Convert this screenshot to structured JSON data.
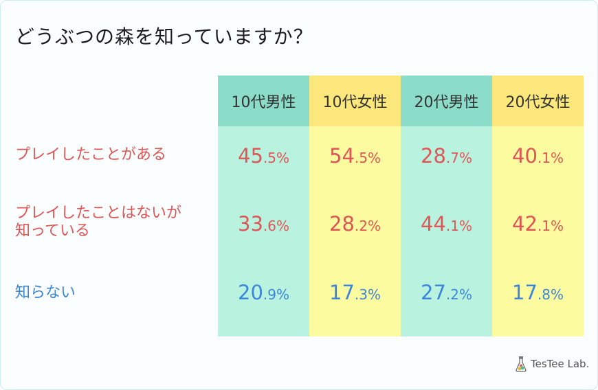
{
  "title": "どうぶつの森を知っていますか？",
  "columns": [
    "10代男性",
    "10代女性",
    "20代男性",
    "20代女性"
  ],
  "rows": [
    {
      "label": "プレイしたことがある",
      "cells": [
        {
          "i": "45",
          "d": ".5%"
        },
        {
          "i": "54",
          "d": ".5%"
        },
        {
          "i": "28",
          "d": ".7%"
        },
        {
          "i": "40",
          "d": ".1%"
        }
      ]
    },
    {
      "label_line1": "プレイしたことはないが",
      "label_line2": "知っている",
      "cells": [
        {
          "i": "33",
          "d": ".6%"
        },
        {
          "i": "28",
          "d": ".2%"
        },
        {
          "i": "44",
          "d": ".1%"
        },
        {
          "i": "42",
          "d": ".1%"
        }
      ]
    },
    {
      "label": "知らない",
      "cells": [
        {
          "i": "20",
          "d": ".9%"
        },
        {
          "i": "17",
          "d": ".3%"
        },
        {
          "i": "27",
          "d": ".2%"
        },
        {
          "i": "17",
          "d": ".8%"
        }
      ]
    }
  ],
  "logo": "TesTee Lab.",
  "colors": {
    "male_header": "#8bdcc9",
    "male_body": "#b9f2df",
    "female_header": "#fbe77c",
    "female_body": "#fdfba0",
    "red": "#e05555",
    "blue": "#3a86dc"
  },
  "chart_data": {
    "type": "table",
    "title": "どうぶつの森を知っていますか？",
    "columns": [
      "10代男性",
      "10代女性",
      "20代男性",
      "20代女性"
    ],
    "series": [
      {
        "name": "プレイしたことがある",
        "values": [
          45.5,
          54.5,
          28.7,
          40.1
        ]
      },
      {
        "name": "プレイしたことはないが知っている",
        "values": [
          33.6,
          28.2,
          44.1,
          42.1
        ]
      },
      {
        "name": "知らない",
        "values": [
          20.9,
          17.3,
          27.2,
          17.8
        ]
      }
    ],
    "unit": "%"
  }
}
